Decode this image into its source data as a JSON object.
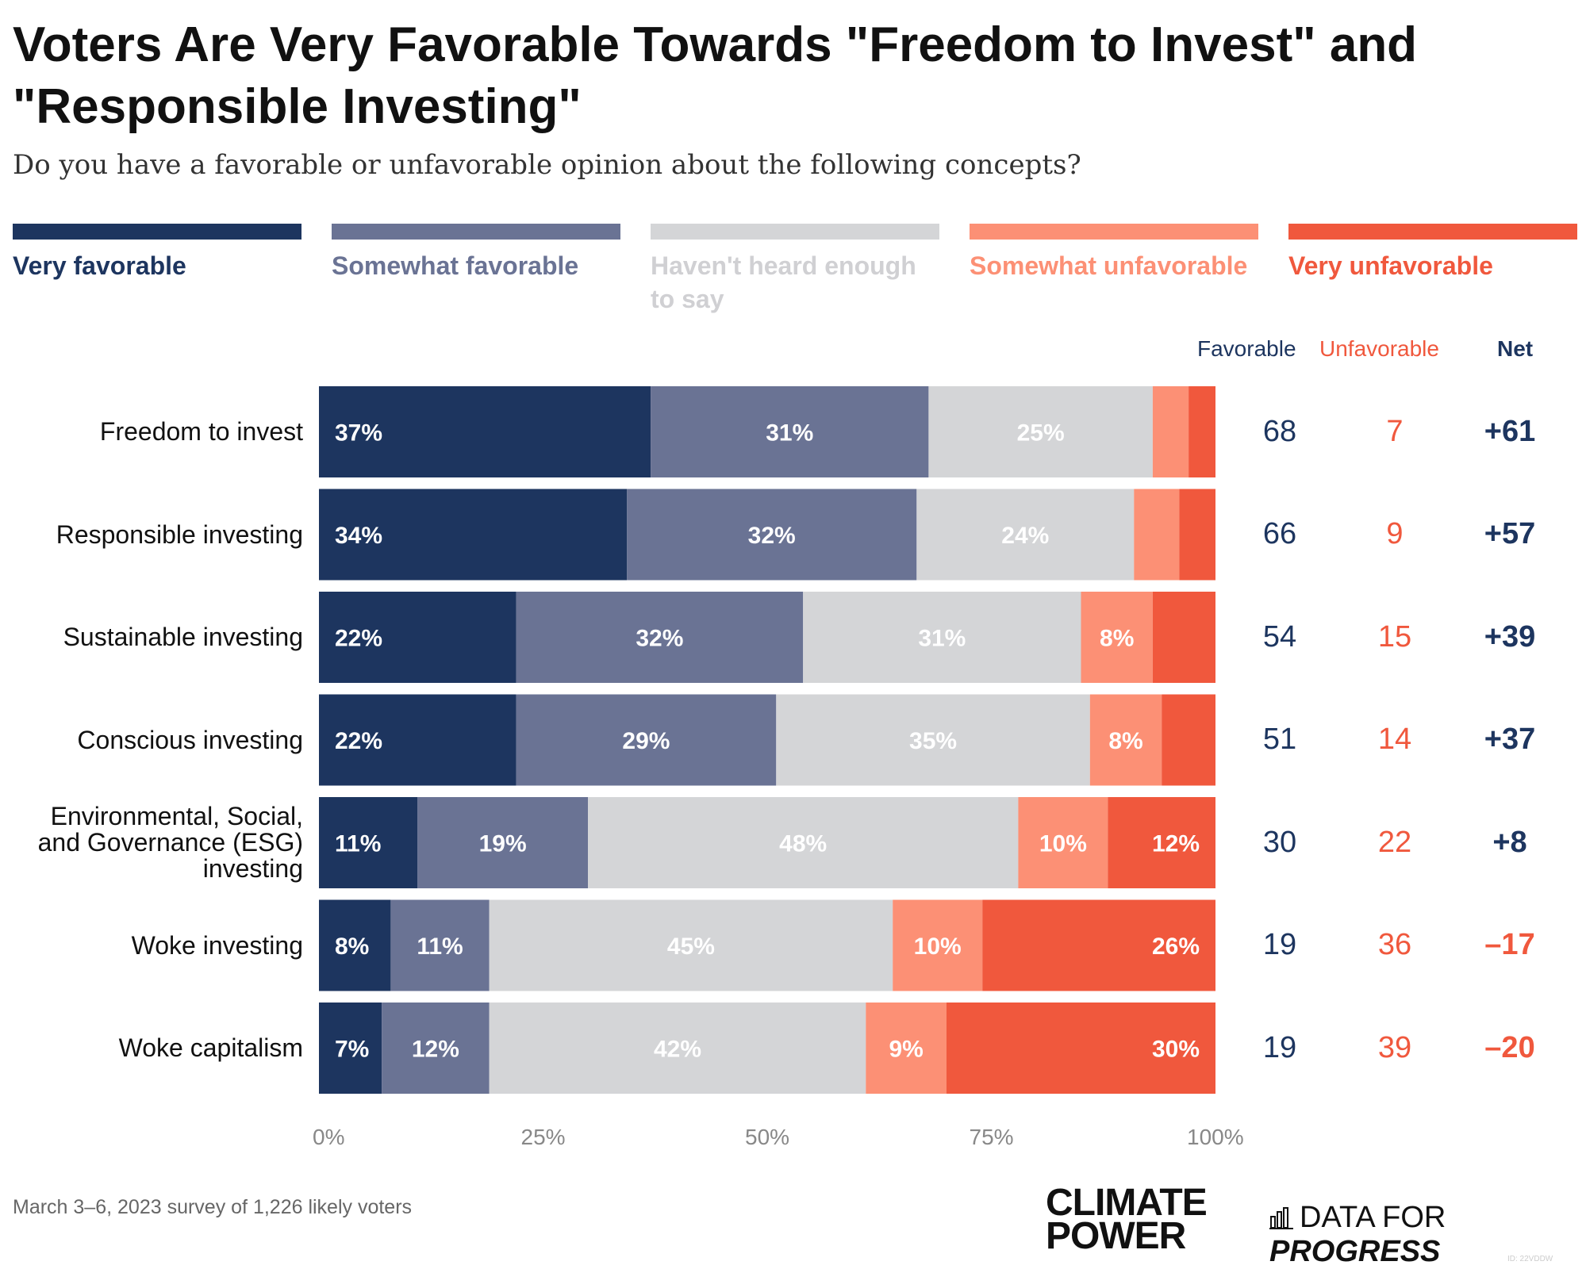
{
  "title": "Voters Are Very Favorable Towards \"Freedom to Invest\" and \"Responsible Investing\"",
  "subtitle": "Do you have a favorable or unfavorable opinion about the following concepts?",
  "legend": [
    {
      "label": "Very favorable",
      "color": "#1d355f"
    },
    {
      "label": "Somewhat favorable",
      "color": "#6a7394"
    },
    {
      "label": "Haven't heard enough to say",
      "color": "#d4d5d7"
    },
    {
      "label": "Somewhat unfavorable",
      "color": "#fc9075"
    },
    {
      "label": "Very unfavorable",
      "color": "#f0583d"
    }
  ],
  "columns": {
    "favorable": "Favorable",
    "unfavorable": "Unfavorable",
    "net": "Net"
  },
  "footnote": "March 3–6, 2023 survey of 1,226 likely voters",
  "logos": {
    "climate_power": "CLIMATE POWER",
    "data_for": "DATA FOR ",
    "progress": "PROGRESS",
    "id": "ID: 22VDDW"
  },
  "chart_data": {
    "type": "bar",
    "orientation": "horizontal-stacked",
    "xlim": [
      0,
      100
    ],
    "xticks": [
      "0%",
      "25%",
      "50%",
      "75%",
      "100%"
    ],
    "categories": [
      "Freedom to invest",
      "Responsible investing",
      "Sustainable investing",
      "Conscious investing",
      "Environmental, Social, and Governance (ESG) investing",
      "Woke investing",
      "Woke capitalism"
    ],
    "series": [
      {
        "name": "Very favorable",
        "values": [
          37,
          34,
          22,
          22,
          11,
          8,
          7
        ],
        "labels": [
          "37%",
          "34%",
          "22%",
          "22%",
          "11%",
          "8%",
          "7%"
        ]
      },
      {
        "name": "Somewhat favorable",
        "values": [
          31,
          32,
          32,
          29,
          19,
          11,
          12
        ],
        "labels": [
          "31%",
          "32%",
          "32%",
          "29%",
          "19%",
          "11%",
          "12%"
        ]
      },
      {
        "name": "Haven't heard enough to say",
        "values": [
          25,
          24,
          31,
          35,
          48,
          45,
          42
        ],
        "labels": [
          "25%",
          "24%",
          "31%",
          "35%",
          "48%",
          "45%",
          "42%"
        ]
      },
      {
        "name": "Somewhat unfavorable",
        "values": [
          4,
          5,
          8,
          8,
          10,
          10,
          9
        ],
        "labels": [
          "",
          "",
          "8%",
          "8%",
          "10%",
          "10%",
          "9%"
        ]
      },
      {
        "name": "Very unfavorable",
        "values": [
          3,
          4,
          7,
          6,
          12,
          26,
          30
        ],
        "labels": [
          "",
          "",
          "",
          "",
          "12%",
          "26%",
          "30%"
        ]
      }
    ],
    "favorable": [
      "68",
      "66",
      "54",
      "51",
      "30",
      "19",
      "19"
    ],
    "unfavorable": [
      "7",
      "9",
      "15",
      "14",
      "22",
      "36",
      "39"
    ],
    "net": [
      "+61",
      "+57",
      "+39",
      "+37",
      "+8",
      "–17",
      "–20"
    ],
    "legend_position": "top"
  }
}
